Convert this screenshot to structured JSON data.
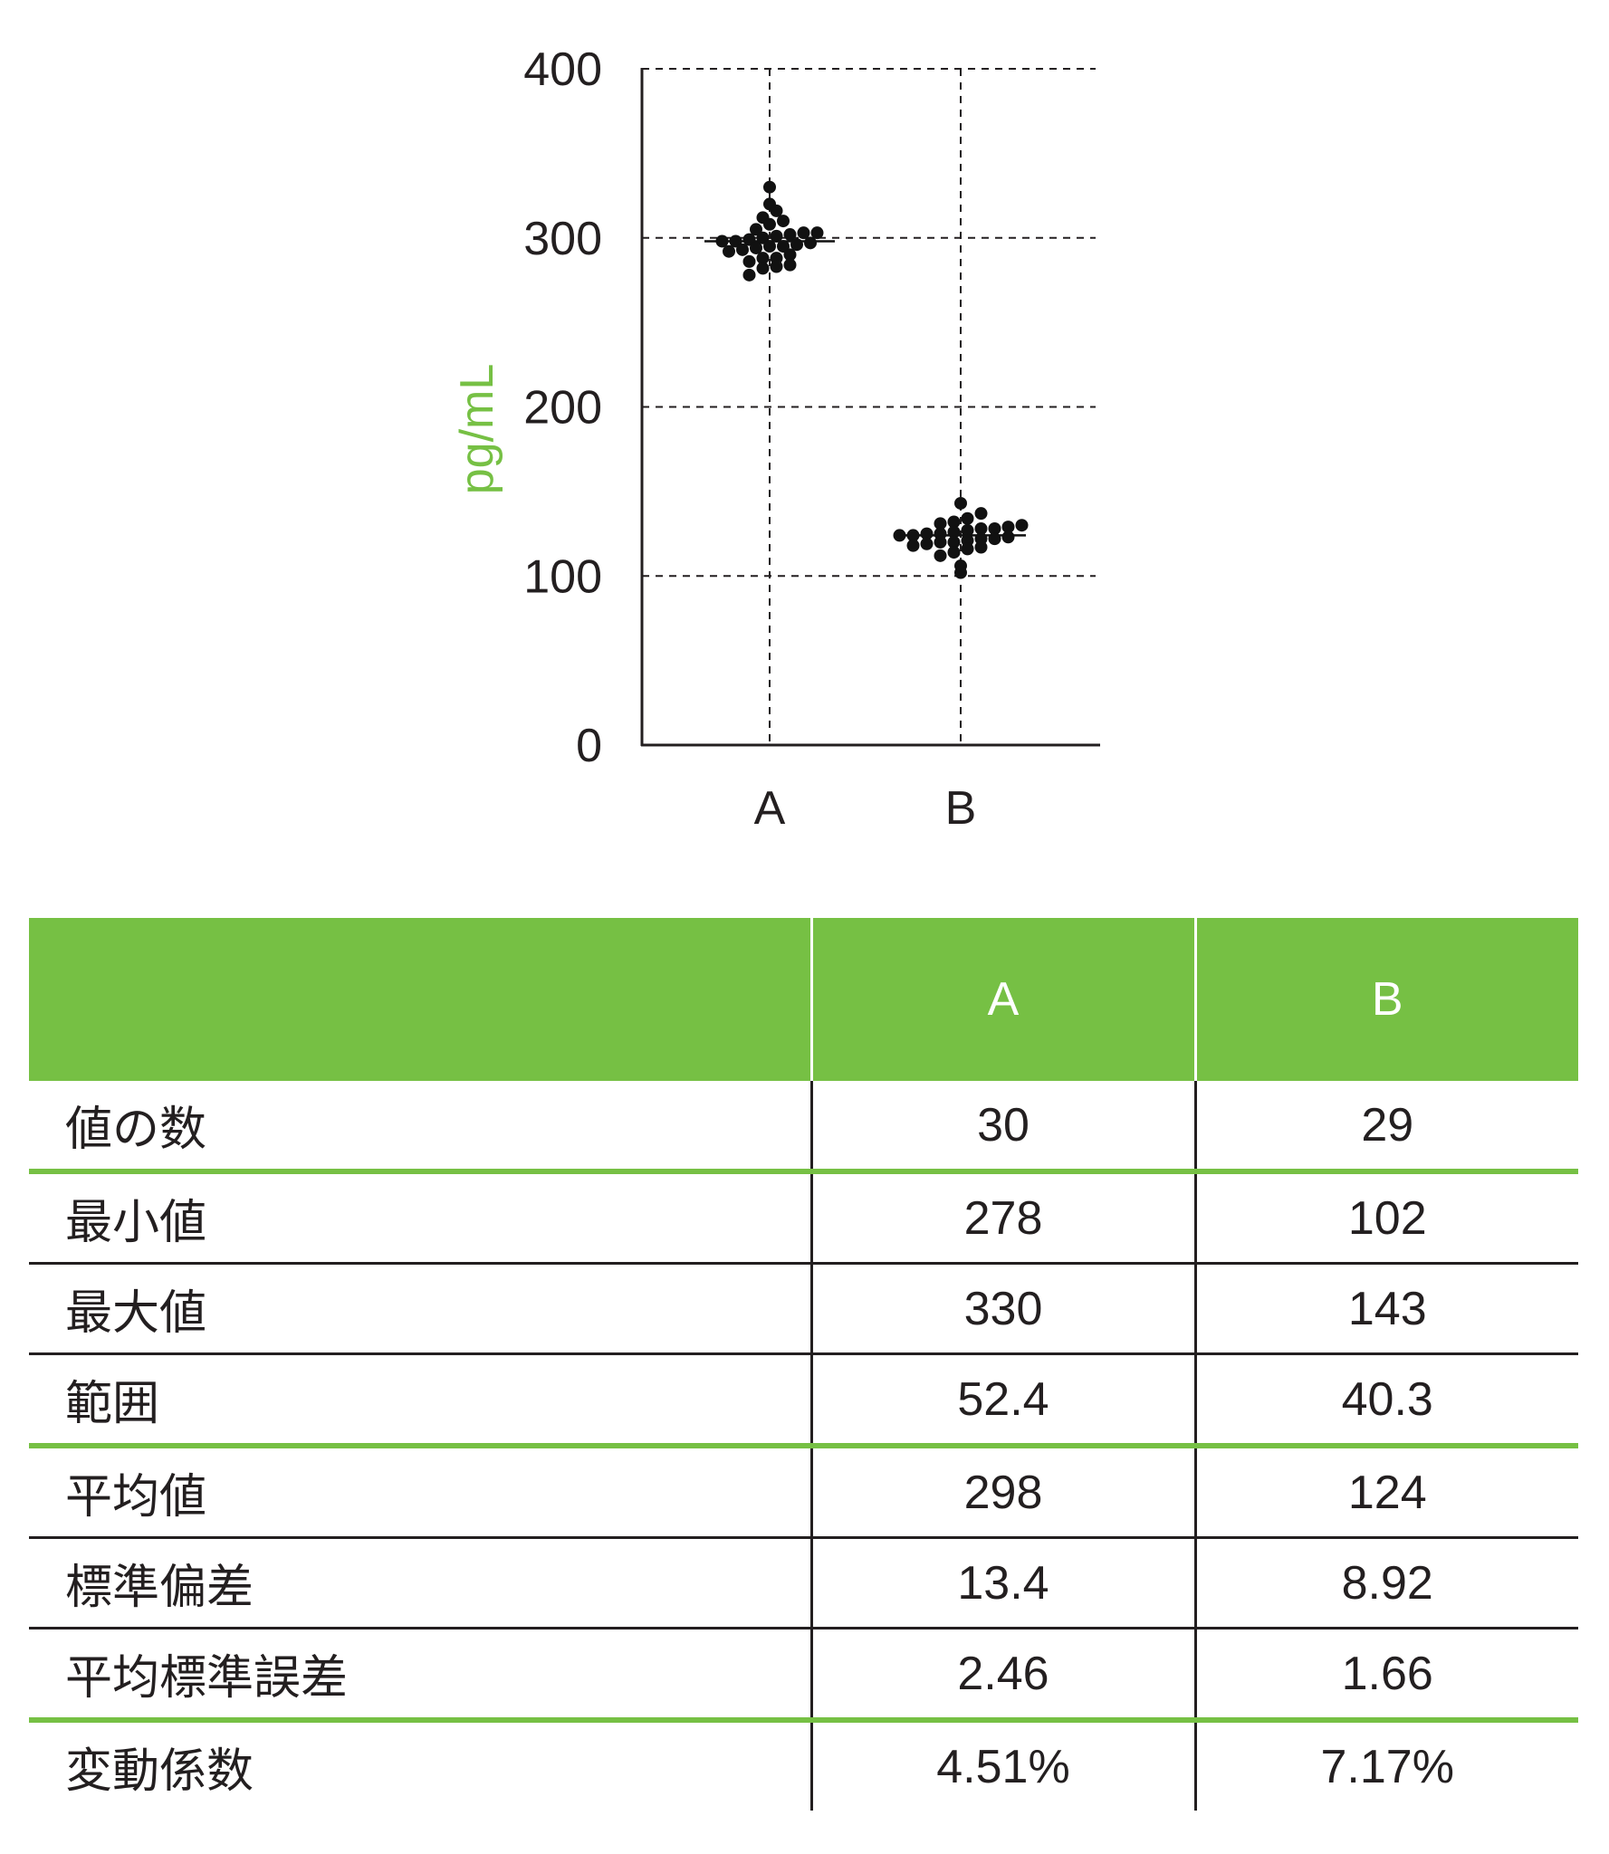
{
  "colors": {
    "accent_green": "#76c044",
    "text": "#231f20",
    "dots": "#111111"
  },
  "chart_data": {
    "type": "scatter",
    "subtype": "dot-plot",
    "categories": [
      "A",
      "B"
    ],
    "ylabel": "pg/mL",
    "ylim": [
      0,
      400
    ],
    "yticks": [
      "0",
      "100",
      "200",
      "300",
      "400"
    ],
    "grid": true,
    "series": [
      {
        "category": "A",
        "mean": 298,
        "values": [
          278,
          282,
          283,
          284,
          286,
          288,
          288,
          290,
          292,
          293,
          294,
          295,
          295,
          296,
          297,
          298,
          298,
          299,
          300,
          301,
          302,
          303,
          303,
          305,
          308,
          310,
          312,
          316,
          320,
          330
        ]
      },
      {
        "category": "B",
        "mean": 124,
        "values": [
          102,
          106,
          112,
          114,
          116,
          117,
          118,
          119,
          120,
          120,
          121,
          122,
          122,
          123,
          124,
          124,
          125,
          125,
          126,
          127,
          128,
          128,
          129,
          130,
          131,
          132,
          134,
          137,
          143
        ]
      }
    ]
  },
  "table": {
    "headers": [
      "",
      "A",
      "B"
    ],
    "rows": [
      {
        "label": "値の数",
        "a": "30",
        "b": "29"
      },
      {
        "label": "最小値",
        "a": "278",
        "b": "102"
      },
      {
        "label": "最大値",
        "a": "330",
        "b": "143"
      },
      {
        "label": "範囲",
        "a": "52.4",
        "b": "40.3"
      },
      {
        "label": "平均値",
        "a": "298",
        "b": "124"
      },
      {
        "label": "標準偏差",
        "a": "13.4",
        "b": "8.92"
      },
      {
        "label": "平均標準誤差",
        "a": "2.46",
        "b": "1.66"
      },
      {
        "label": "変動係数",
        "a": "4.51%",
        "b": "7.17%"
      }
    ]
  }
}
